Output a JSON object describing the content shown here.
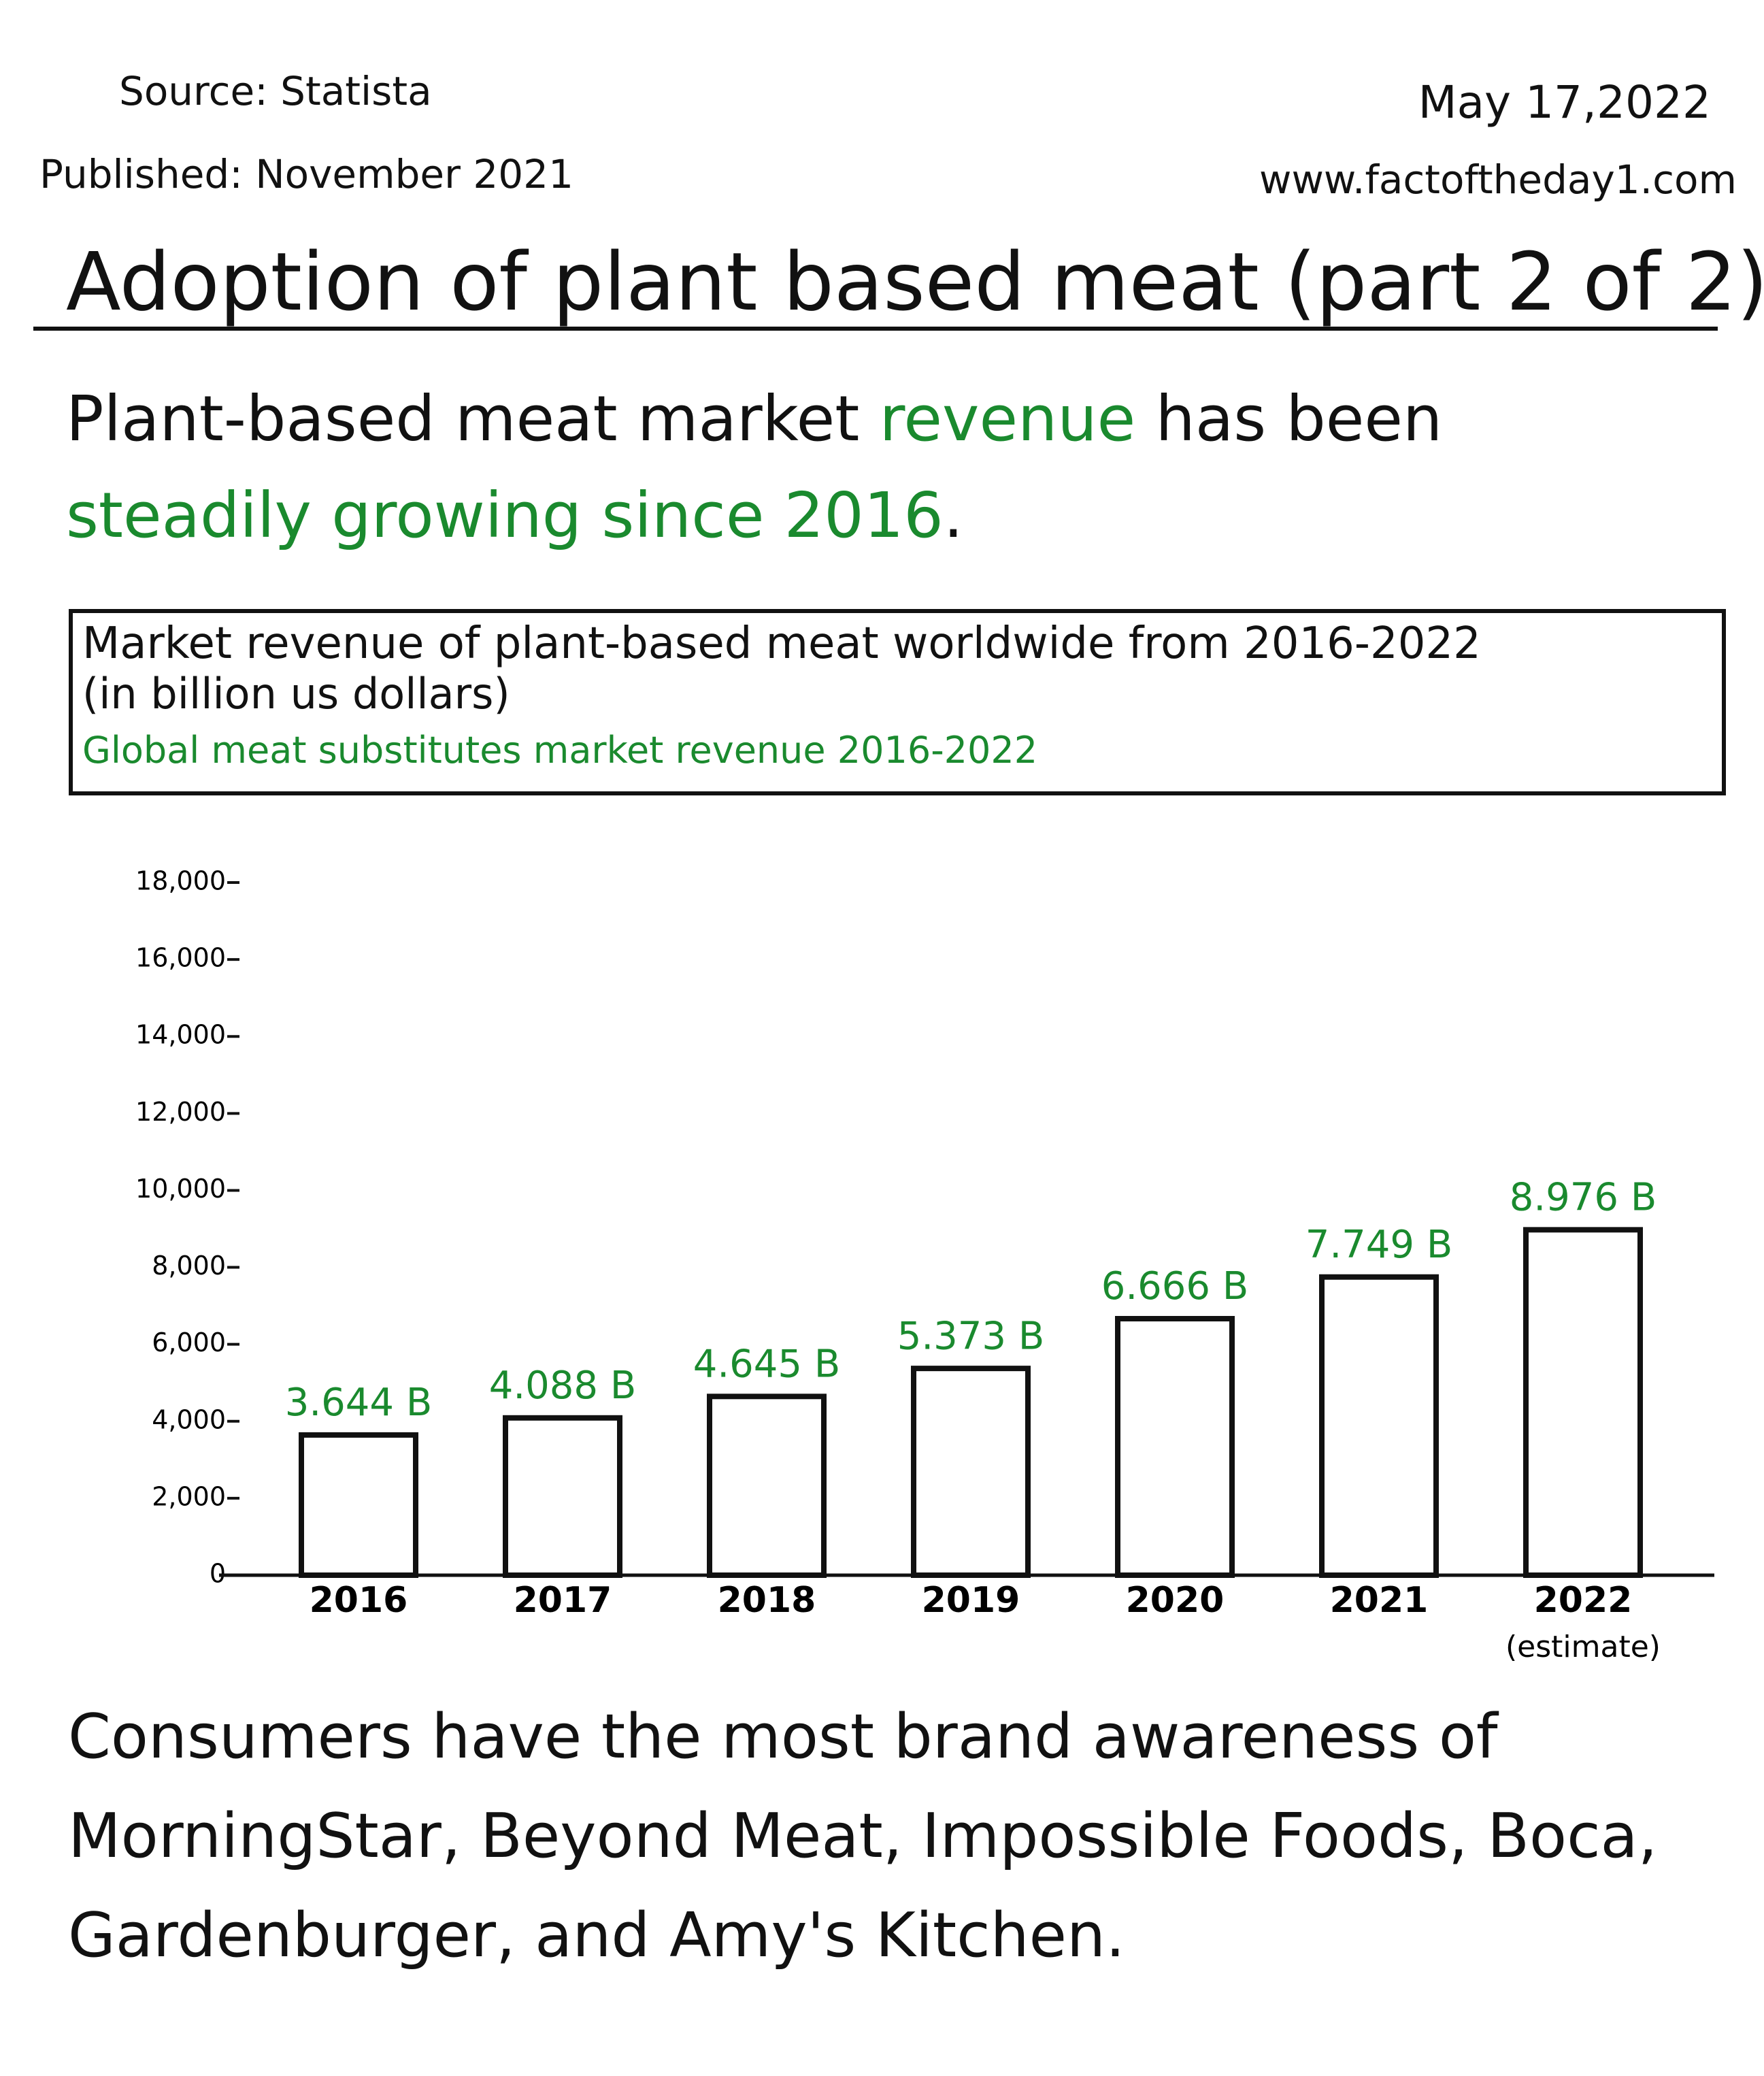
{
  "header": {
    "source": "Source: Statista",
    "published": "Published: November 2021",
    "date": "May 17,2022",
    "website": "www.factoftheday1.com"
  },
  "title": "Adoption of plant based meat (part 2 of 2)",
  "intro": [
    {
      "text": "Plant-based meat market",
      "highlight": false
    },
    {
      "text": "revenue",
      "highlight": true
    },
    {
      "text": "has been",
      "highlight": false
    },
    {
      "text": "steadily growing since 2016",
      "highlight": true
    },
    {
      "text": ".",
      "highlight": false
    }
  ],
  "highlight_color": "#1a8a2e",
  "chart_data": {
    "type": "bar",
    "title": "Market revenue of plant-based meat worldwide from 2016-2022",
    "subtitle": "(in billion us dollars)",
    "note": "Global meat substitutes market revenue 2016-2022",
    "categories": [
      "2016",
      "2017",
      "2018",
      "2019",
      "2020",
      "2021",
      "2022"
    ],
    "category_notes": [
      null,
      null,
      null,
      null,
      null,
      null,
      "(estimate)"
    ],
    "values": [
      3644,
      4088,
      4645,
      5373,
      6666,
      7749,
      8976
    ],
    "value_labels": [
      "3.644 B",
      "4.088 B",
      "4.645 B",
      "5.373 B",
      "6.666 B",
      "7.749 B",
      "8.976 B"
    ],
    "color": "#ffffff",
    "edge_color": "#111111",
    "label_color": "#1a8a2e",
    "ylim": [
      0,
      18000
    ],
    "yticks": [
      0,
      {
        "value": 2000,
        "label": "2,000"
      },
      {
        "value": 4000,
        "label": "4,000"
      },
      {
        "value": 6000,
        "label": "6,000"
      },
      {
        "value": 8000,
        "label": "8,000"
      },
      {
        "value": 10000,
        "label": "10,000"
      },
      {
        "value": 12000,
        "label": "12,000"
      },
      {
        "value": 14000,
        "label": "14,000"
      },
      {
        "value": 16000,
        "label": "16,000"
      },
      {
        "value": 18000,
        "label": "18,000"
      }
    ],
    "grid": false
  },
  "conclusion": "Consumers have the most brand awareness of MorningStar, Beyond Meat, Impossible Foods, Boca, Gardenburger, and Amy's Kitchen."
}
